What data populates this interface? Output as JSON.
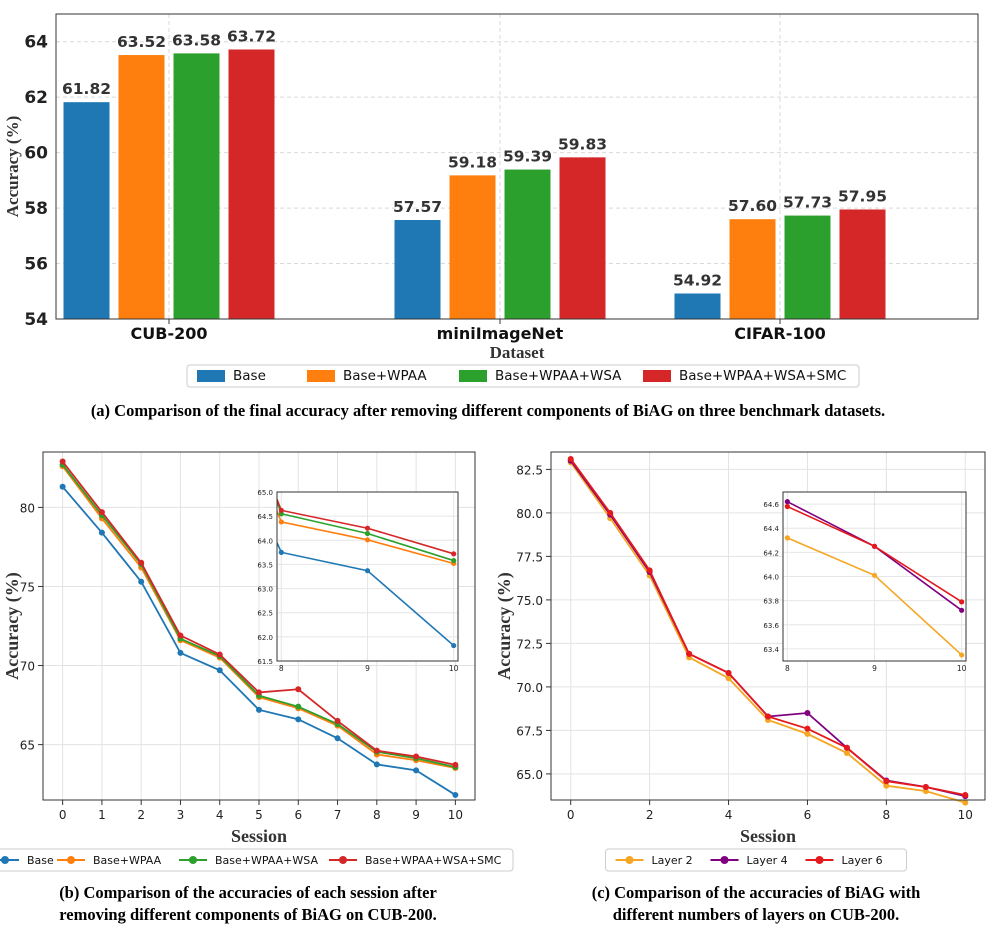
{
  "captions": {
    "a": "(a) Comparison of the final accuracy after removing different components of BiAG on three benchmark datasets.",
    "b_line1": "(b) Comparison of the accuracies of each session after",
    "b_line2": "removing different components of BiAG on CUB-200.",
    "c_line1": "(c) Comparison of the accuracies of  BiAG with",
    "c_line2": "different numbers of layers on CUB-200."
  },
  "colors": {
    "blue": "#1f77b4",
    "orange": "#ff7f0e",
    "green": "#2ca02c",
    "red": "#d62728",
    "yellow": "#f5a623",
    "purple": "#800080",
    "red2": "#e41a1c"
  },
  "chart_data": [
    {
      "id": "a",
      "type": "bar",
      "xlabel": "Dataset",
      "ylabel": "Accuracy (%)",
      "ylim": [
        54,
        65
      ],
      "yticks": [
        54,
        56,
        58,
        60,
        62,
        64
      ],
      "grid": true,
      "legend": "bottom-center",
      "categories": [
        "CUB-200",
        "miniImageNet",
        "CIFAR-100"
      ],
      "series": [
        {
          "name": "Base",
          "color": "blue",
          "values": [
            61.82,
            57.57,
            54.92
          ],
          "labels": [
            "61.82",
            "57.57",
            "54.92"
          ]
        },
        {
          "name": "Base+WPAA",
          "color": "orange",
          "values": [
            63.52,
            59.18,
            57.6
          ],
          "labels": [
            "63.52",
            "59.18",
            "57.60"
          ]
        },
        {
          "name": "Base+WPAA+WSA",
          "color": "green",
          "values": [
            63.58,
            59.39,
            57.73
          ],
          "labels": [
            "63.58",
            "59.39",
            "57.73"
          ]
        },
        {
          "name": "Base+WPAA+WSA+SMC",
          "color": "red",
          "values": [
            63.72,
            59.83,
            57.95
          ],
          "labels": [
            "63.72",
            "59.83",
            "57.95"
          ]
        }
      ]
    },
    {
      "id": "b",
      "type": "line",
      "xlabel": "Session",
      "ylabel": "Accuracy (%)",
      "xlim": [
        -0.5,
        10.5
      ],
      "ylim": [
        61.5,
        83.5
      ],
      "xticks": [
        0,
        1,
        2,
        3,
        4,
        5,
        6,
        7,
        8,
        9,
        10
      ],
      "yticks": [
        65,
        70,
        75,
        80
      ],
      "grid": true,
      "legend": "bottom-center",
      "x": [
        0,
        1,
        2,
        3,
        4,
        5,
        6,
        7,
        8,
        9,
        10
      ],
      "series": [
        {
          "name": "Base",
          "color": "blue",
          "values": [
            81.3,
            78.4,
            75.3,
            70.8,
            69.7,
            67.2,
            66.6,
            65.4,
            63.75,
            63.37,
            61.82
          ]
        },
        {
          "name": "Base+WPAA",
          "color": "orange",
          "values": [
            82.6,
            79.3,
            76.2,
            71.6,
            70.5,
            68.0,
            67.3,
            66.2,
            64.38,
            64.01,
            63.52
          ]
        },
        {
          "name": "Base+WPAA+WSA",
          "color": "green",
          "values": [
            82.7,
            79.5,
            76.4,
            71.7,
            70.6,
            68.1,
            67.4,
            66.3,
            64.55,
            64.14,
            63.58
          ]
        },
        {
          "name": "Base+WPAA+WSA+SMC",
          "color": "red",
          "values": [
            82.9,
            79.7,
            76.5,
            71.9,
            70.7,
            68.3,
            68.5,
            66.5,
            64.62,
            64.25,
            63.72
          ]
        }
      ],
      "inset": {
        "xlim": [
          7.95,
          10.05
        ],
        "ylim": [
          61.5,
          65.0
        ],
        "xticks": [
          8,
          9,
          10
        ],
        "yticks": [
          61.5,
          62.0,
          62.5,
          63.0,
          63.5,
          64.0,
          64.5,
          65.0
        ],
        "x": [
          7.95,
          8,
          9,
          10
        ],
        "series": [
          {
            "name": "Base",
            "color": "blue",
            "values": [
              63.95,
              63.75,
              63.37,
              61.82
            ]
          },
          {
            "name": "Base+WPAA",
            "color": "orange",
            "values": [
              64.6,
              64.38,
              64.01,
              63.52
            ]
          },
          {
            "name": "Base+WPAA+WSA",
            "color": "green",
            "values": [
              64.8,
              64.55,
              64.14,
              63.58
            ]
          },
          {
            "name": "Base+WPAA+WSA+SMC",
            "color": "red",
            "values": [
              64.85,
              64.62,
              64.25,
              63.72
            ]
          }
        ]
      }
    },
    {
      "id": "c",
      "type": "line",
      "xlabel": "Session",
      "ylabel": "Accuracy (%)",
      "xlim": [
        -0.5,
        10.5
      ],
      "ylim": [
        63.5,
        83.5
      ],
      "xticks": [
        0,
        2,
        4,
        6,
        8,
        10
      ],
      "yticks": [
        65.0,
        67.5,
        70.0,
        72.5,
        75.0,
        77.5,
        80.0,
        82.5
      ],
      "grid": true,
      "legend": "bottom-center",
      "x": [
        0,
        1,
        2,
        3,
        4,
        5,
        6,
        7,
        8,
        9,
        10
      ],
      "series": [
        {
          "name": "Layer 2",
          "color": "yellow",
          "values": [
            82.9,
            79.7,
            76.4,
            71.7,
            70.5,
            68.1,
            67.3,
            66.2,
            64.32,
            64.01,
            63.35
          ]
        },
        {
          "name": "Layer 4",
          "color": "purple",
          "values": [
            83.0,
            79.9,
            76.6,
            71.9,
            70.8,
            68.3,
            68.5,
            66.5,
            64.62,
            64.25,
            63.72
          ]
        },
        {
          "name": "Layer 6",
          "color": "red2",
          "values": [
            83.1,
            80.0,
            76.7,
            71.9,
            70.8,
            68.3,
            67.6,
            66.5,
            64.58,
            64.25,
            63.79
          ]
        }
      ],
      "inset": {
        "xlim": [
          7.95,
          10.05
        ],
        "ylim": [
          63.3,
          64.7
        ],
        "xticks": [
          8,
          9,
          10
        ],
        "yticks": [
          63.4,
          63.6,
          63.8,
          64.0,
          64.2,
          64.4,
          64.6
        ],
        "x": [
          8,
          9,
          10
        ],
        "series": [
          {
            "name": "Layer 2",
            "color": "yellow",
            "values": [
              64.32,
              64.01,
              63.35
            ]
          },
          {
            "name": "Layer 4",
            "color": "purple",
            "values": [
              64.62,
              64.25,
              63.72
            ]
          },
          {
            "name": "Layer 6",
            "color": "red2",
            "values": [
              64.58,
              64.25,
              63.79
            ]
          }
        ]
      }
    }
  ]
}
